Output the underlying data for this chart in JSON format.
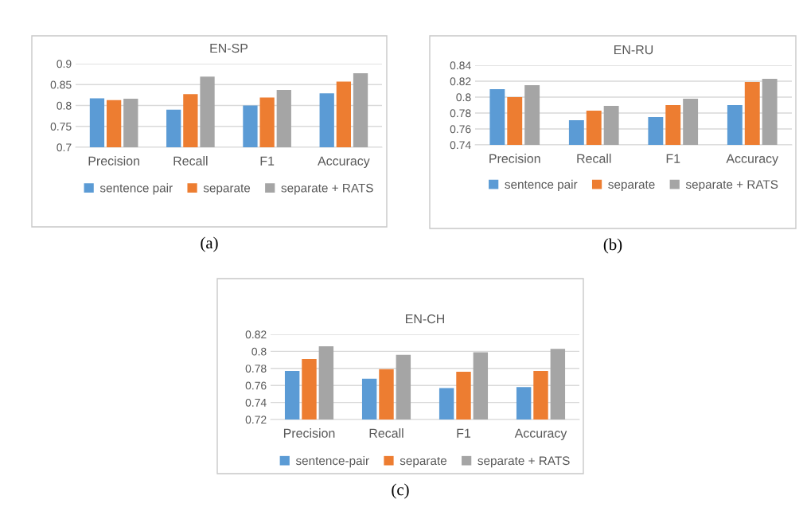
{
  "chart_data": [
    {
      "type": "bar",
      "title": "EN-SP",
      "categories": [
        "Precision",
        "Recall",
        "F1",
        "Accuracy"
      ],
      "series": [
        {
          "name": "sentence pair",
          "color": "#5b9bd5",
          "values": [
            0.817,
            0.79,
            0.8,
            0.829
          ]
        },
        {
          "name": "separate",
          "color": "#ed7d31",
          "values": [
            0.813,
            0.827,
            0.819,
            0.857
          ]
        },
        {
          "name": "separate + RATS",
          "color": "#a5a5a5",
          "values": [
            0.816,
            0.869,
            0.837,
            0.877
          ]
        }
      ],
      "ylim": [
        0.7,
        0.9
      ],
      "yticks": [
        0.7,
        0.75,
        0.8,
        0.85,
        0.9
      ],
      "grid": "y",
      "legend": "bottom",
      "annotations": [
        "(a)"
      ]
    },
    {
      "type": "bar",
      "title": "EN-RU",
      "categories": [
        "Precision",
        "Recall",
        "F1",
        "Accuracy"
      ],
      "series": [
        {
          "name": "sentence pair",
          "color": "#5b9bd5",
          "values": [
            0.81,
            0.771,
            0.775,
            0.79
          ]
        },
        {
          "name": "separate",
          "color": "#ed7d31",
          "values": [
            0.8,
            0.783,
            0.79,
            0.819
          ]
        },
        {
          "name": "separate + RATS",
          "color": "#a5a5a5",
          "values": [
            0.815,
            0.789,
            0.798,
            0.823
          ]
        }
      ],
      "ylim": [
        0.74,
        0.84
      ],
      "yticks": [
        0.74,
        0.76,
        0.78,
        0.8,
        0.82,
        0.84
      ],
      "grid": "y",
      "legend": "bottom",
      "annotations": [
        "(b)"
      ]
    },
    {
      "type": "bar",
      "title": "EN-CH",
      "categories": [
        "Precision",
        "Recall",
        "F1",
        "Accuracy"
      ],
      "series": [
        {
          "name": "sentence-pair",
          "color": "#5b9bd5",
          "values": [
            0.777,
            0.768,
            0.757,
            0.758
          ]
        },
        {
          "name": "separate",
          "color": "#ed7d31",
          "values": [
            0.791,
            0.779,
            0.776,
            0.777
          ]
        },
        {
          "name": "separate + RATS",
          "color": "#a5a5a5",
          "values": [
            0.806,
            0.796,
            0.799,
            0.803
          ]
        }
      ],
      "ylim": [
        0.72,
        0.82
      ],
      "yticks": [
        0.72,
        0.74,
        0.76,
        0.78,
        0.8,
        0.82
      ],
      "grid": "y",
      "legend": "bottom",
      "annotations": [
        "(c)"
      ]
    }
  ]
}
